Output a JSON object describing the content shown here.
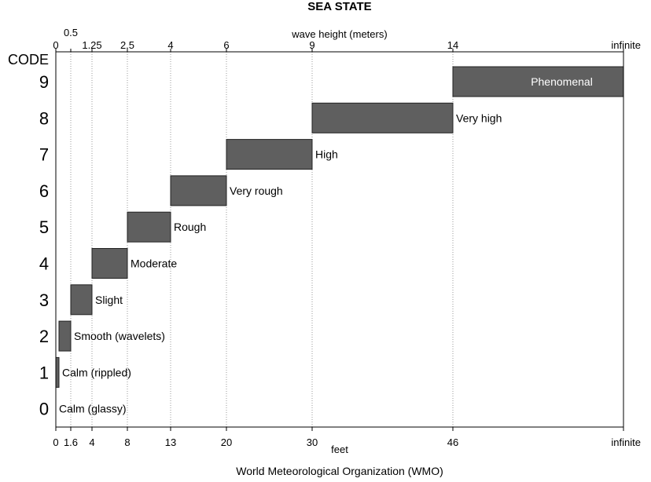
{
  "chart_data": {
    "type": "bar",
    "orientation": "horizontal-range",
    "title": "SEA STATE",
    "top_axis_label": "wave height (meters)",
    "bottom_axis_label": "feet",
    "y_axis_label": "CODE",
    "footer": "World Meteorological Organization (WMO)",
    "meter_ticks": [
      "0",
      "0.5",
      "1.25",
      "2.5",
      "4",
      "6",
      "9",
      "14",
      "infinite"
    ],
    "feet_ticks": [
      "0",
      "1.6",
      "4",
      "8",
      "13",
      "20",
      "30",
      "46",
      "infinite"
    ],
    "codes": [
      "0",
      "1",
      "2",
      "3",
      "4",
      "5",
      "6",
      "7",
      "8",
      "9"
    ],
    "grid": "vertical dotted",
    "bar_color": "#5f5f5f",
    "categories": [
      {
        "code": "0",
        "label": "Calm (glassy)",
        "start_m": "0",
        "end_m": "0"
      },
      {
        "code": "1",
        "label": "Calm (rippled)",
        "start_m": "0",
        "end_m": "0.1"
      },
      {
        "code": "2",
        "label": "Smooth (wavelets)",
        "start_m": "0.1",
        "end_m": "0.5"
      },
      {
        "code": "3",
        "label": "Slight",
        "start_m": "0.5",
        "end_m": "1.25"
      },
      {
        "code": "4",
        "label": "Moderate",
        "start_m": "1.25",
        "end_m": "2.5"
      },
      {
        "code": "5",
        "label": "Rough",
        "start_m": "2.5",
        "end_m": "4"
      },
      {
        "code": "6",
        "label": "Very rough",
        "start_m": "4",
        "end_m": "6"
      },
      {
        "code": "7",
        "label": "High",
        "start_m": "6",
        "end_m": "9"
      },
      {
        "code": "8",
        "label": "Very high",
        "start_m": "9",
        "end_m": "14"
      },
      {
        "code": "9",
        "label": "Phenomenal",
        "start_m": "14",
        "end_m": "infinite"
      }
    ]
  }
}
